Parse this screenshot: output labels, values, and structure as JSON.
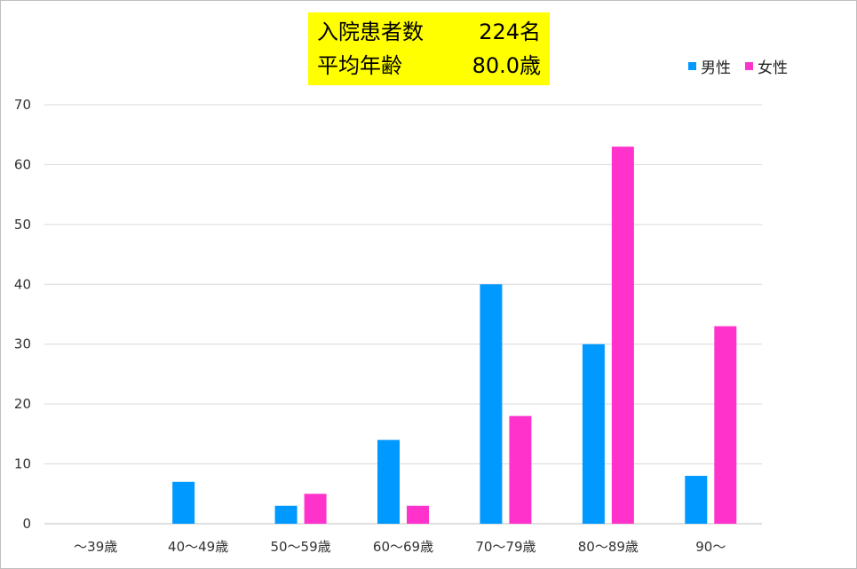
{
  "title": {
    "line1_label": "入院患者数",
    "line1_value": "224名",
    "line2_label": "平均年齢",
    "line2_value": "80.0歳",
    "background": "#ffff00"
  },
  "chart_data": {
    "type": "bar",
    "categories": [
      "～39歳",
      "40～49歳",
      "50～59歳",
      "60～69歳",
      "70～79歳",
      "80～89歳",
      "90～"
    ],
    "series": [
      {
        "name": "男性",
        "color": "#0099ff",
        "values": [
          0,
          7,
          3,
          14,
          40,
          30,
          8
        ]
      },
      {
        "name": "女性",
        "color": "#ff33cc",
        "values": [
          0,
          0,
          5,
          3,
          18,
          63,
          33
        ]
      }
    ],
    "ylim": [
      0,
      70
    ],
    "yticks": [
      "0",
      "10",
      "20",
      "30",
      "40",
      "50",
      "60",
      "70"
    ],
    "grid": true,
    "legend_position": "top-right"
  }
}
